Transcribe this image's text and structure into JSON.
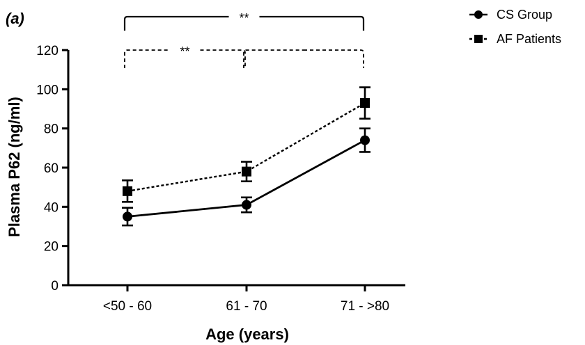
{
  "chart_data": {
    "type": "line",
    "panel_label": "(a)",
    "xlabel": "Age (years)",
    "ylabel": "Plasma P62 (ng/ml)",
    "categories": [
      "<50 - 60",
      "61 - 70",
      "71 - >80"
    ],
    "ylim": [
      0,
      120
    ],
    "yticks": [
      "0",
      "20",
      "40",
      "60",
      "80",
      "100",
      "120"
    ],
    "grid": false,
    "legend_position": "top-right",
    "series": [
      {
        "name": "CS Group",
        "marker": "circle",
        "line_style": "solid",
        "values": [
          35,
          41,
          74
        ],
        "error": [
          4.5,
          3.8,
          6
        ]
      },
      {
        "name": "AF Patients",
        "marker": "square",
        "line_style": "dashed",
        "values": [
          48,
          58,
          93
        ],
        "error": [
          5.5,
          5,
          8
        ]
      }
    ],
    "significance": [
      {
        "label": "**",
        "from_category": 0,
        "to_category": 2,
        "style": "solid"
      },
      {
        "label": "**",
        "from_category": 0,
        "to_category": 1,
        "style": "dashed"
      },
      {
        "label": "",
        "from_category": 1,
        "to_category": 2,
        "style": "dashed"
      }
    ]
  }
}
